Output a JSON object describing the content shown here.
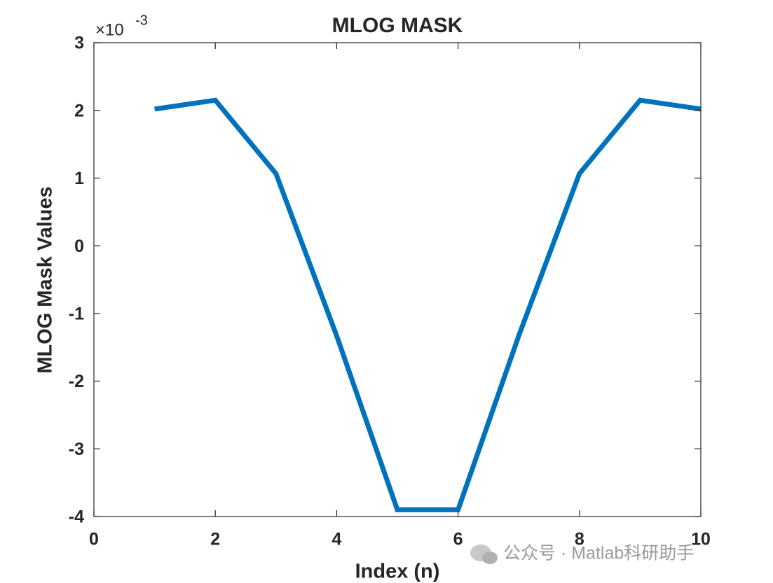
{
  "chart_data": {
    "type": "line",
    "title": "MLOG MASK",
    "x_label": "Index (n)",
    "y_label": "MLOG Mask Values",
    "y_exponent": {
      "base": "×10",
      "power": "-3"
    },
    "x": [
      1,
      2,
      3,
      4,
      5,
      6,
      7,
      8,
      9,
      10
    ],
    "values": [
      2.02,
      2.15,
      1.065,
      -1.33,
      -3.9,
      -3.9,
      -1.33,
      1.065,
      2.15,
      2.02
    ],
    "color": "#0072bd",
    "xlim": [
      0,
      10
    ],
    "xticks": [
      0,
      2,
      4,
      6,
      8,
      10
    ],
    "ylim": [
      -4,
      3
    ],
    "yticks": [
      -4,
      -3,
      -2,
      -1,
      0,
      1,
      2,
      3
    ],
    "grid": false,
    "box": true
  },
  "watermark": "公众号 · Matlab科研助手"
}
